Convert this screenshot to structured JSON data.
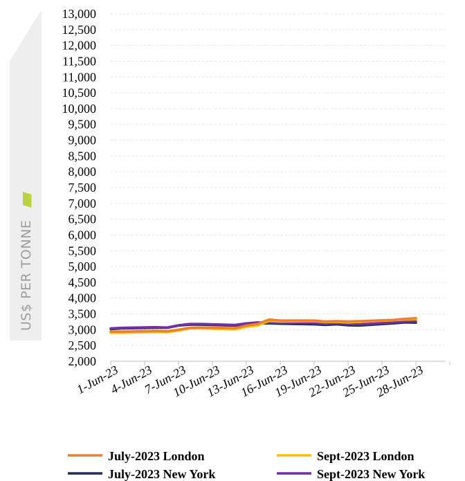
{
  "chart_data": {
    "type": "line",
    "ylabel": "US$ PER TONNE",
    "ylabel_decoration": "//////////////////",
    "ylim": [
      2000,
      13000
    ],
    "yticks": [
      "2,000",
      "2,500",
      "3,000",
      "3,500",
      "4,000",
      "4,500",
      "5,000",
      "5,500",
      "6,000",
      "6,500",
      "7,000",
      "7,500",
      "8,000",
      "8,500",
      "9,000",
      "9,500",
      "10,000",
      "10,500",
      "11,000",
      "11,500",
      "12,000",
      "12,500",
      "13,000"
    ],
    "xticks": [
      "1-Jun-23",
      "4-Jun-23",
      "7-Jun-23",
      "10-Jun-23",
      "13-Jun-23",
      "16-Jun-23",
      "19-Jun-23",
      "22-Jun-23",
      "25-Jun-23",
      "28-Jun-23"
    ],
    "x": [
      "1-Jun-23",
      "2-Jun-23",
      "5-Jun-23",
      "6-Jun-23",
      "7-Jun-23",
      "8-Jun-23",
      "9-Jun-23",
      "12-Jun-23",
      "13-Jun-23",
      "14-Jun-23",
      "15-Jun-23",
      "16-Jun-23",
      "19-Jun-23",
      "20-Jun-23",
      "21-Jun-23",
      "22-Jun-23",
      "23-Jun-23",
      "26-Jun-23",
      "27-Jun-23",
      "28-Jun-23"
    ],
    "series": [
      {
        "name": "July-2023 London",
        "color": "#ED7D31",
        "values": [
          2940,
          2940,
          2960,
          2950,
          3000,
          3060,
          3070,
          3050,
          3130,
          3180,
          3320,
          3290,
          3290,
          3260,
          3270,
          3260,
          3270,
          3310,
          3340,
          3360
        ]
      },
      {
        "name": "Sept-2023 London",
        "color": "#FFC000",
        "values": [
          2900,
          2900,
          2930,
          2920,
          2970,
          3040,
          3040,
          3010,
          3090,
          3130,
          3280,
          3260,
          3270,
          3240,
          3250,
          3230,
          3250,
          3300,
          3320,
          3330
        ]
      },
      {
        "name": "July-2023 New York",
        "color": "#1F2E55",
        "values": [
          3020,
          3040,
          3060,
          3060,
          3130,
          3160,
          3160,
          3130,
          3180,
          3200,
          3200,
          3190,
          3170,
          3150,
          3170,
          3140,
          3130,
          3200,
          3230,
          3220
        ]
      },
      {
        "name": "Sept-2023 New York",
        "color": "#7030A0",
        "values": [
          3040,
          3060,
          3080,
          3070,
          3140,
          3180,
          3180,
          3150,
          3200,
          3230,
          3220,
          3220,
          3210,
          3190,
          3200,
          3180,
          3170,
          3230,
          3260,
          3260
        ]
      }
    ],
    "grid": true,
    "legend_position": "bottom"
  }
}
